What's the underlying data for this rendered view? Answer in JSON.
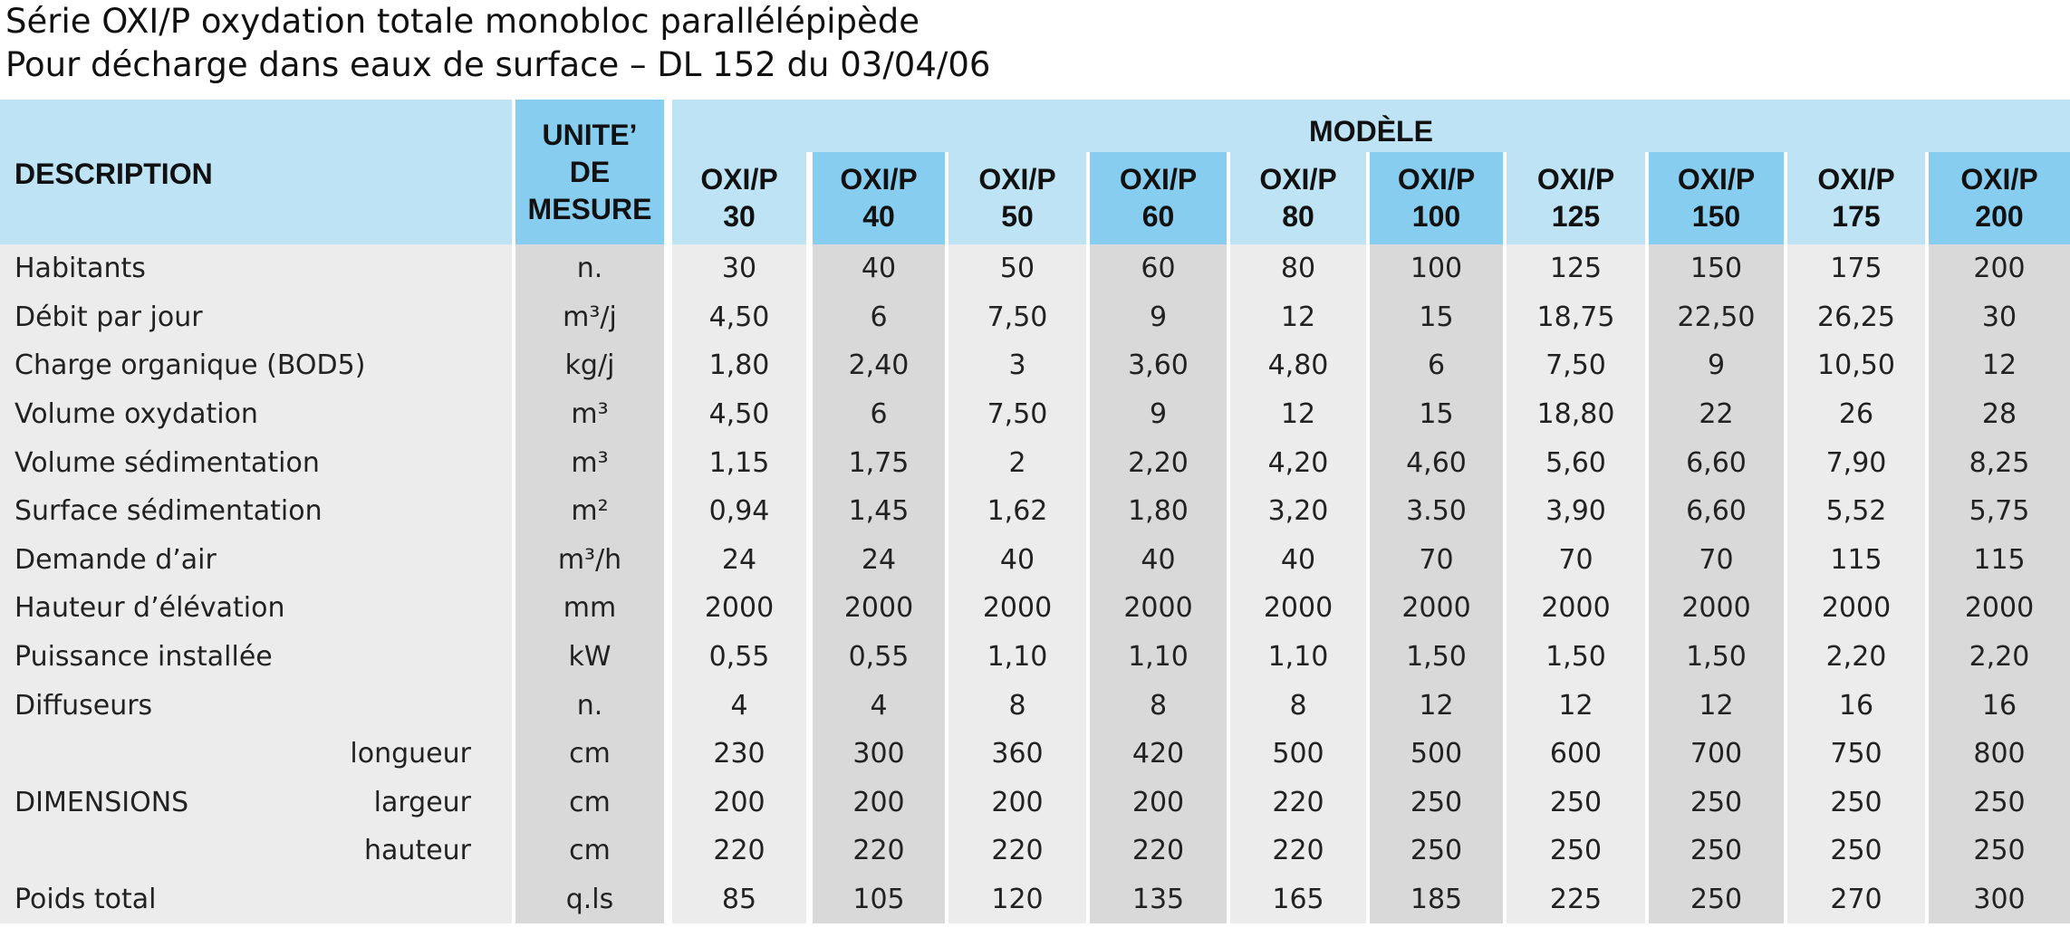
{
  "title_line1": "Série OXI/P oxydation totale monobloc parallélépipède",
  "title_line2": "Pour décharge dans eaux de surface – DL 152 du 03/04/06",
  "header": {
    "description": "DESCRIPTION",
    "unit_lines": [
      "UNITE’",
      "DE",
      "MESURE"
    ],
    "model_group": "MODÈLE",
    "models": [
      {
        "name": "OXI/P",
        "size": "30"
      },
      {
        "name": "OXI/P",
        "size": "40"
      },
      {
        "name": "OXI/P",
        "size": "50"
      },
      {
        "name": "OXI/P",
        "size": "60"
      },
      {
        "name": "OXI/P",
        "size": "80"
      },
      {
        "name": "OXI/P",
        "size": "100"
      },
      {
        "name": "OXI/P",
        "size": "125"
      },
      {
        "name": "OXI/P",
        "size": "150"
      },
      {
        "name": "OXI/P",
        "size": "175"
      },
      {
        "name": "OXI/P",
        "size": "200"
      }
    ]
  },
  "rows": [
    {
      "label": "Habitants",
      "sub": "",
      "unit": "n.",
      "values": [
        "30",
        "40",
        "50",
        "60",
        "80",
        "100",
        "125",
        "150",
        "175",
        "200"
      ]
    },
    {
      "label": "Débit par jour",
      "sub": "",
      "unit": "m³/j",
      "values": [
        "4,50",
        "6",
        "7,50",
        "9",
        "12",
        "15",
        "18,75",
        "22,50",
        "26,25",
        "30"
      ]
    },
    {
      "label": "Charge organique (BOD5)",
      "sub": "",
      "unit": "kg/j",
      "values": [
        "1,80",
        "2,40",
        "3",
        "3,60",
        "4,80",
        "6",
        "7,50",
        "9",
        "10,50",
        "12"
      ]
    },
    {
      "label": "Volume oxydation",
      "sub": "",
      "unit": "m³",
      "values": [
        "4,50",
        "6",
        "7,50",
        "9",
        "12",
        "15",
        "18,80",
        "22",
        "26",
        "28"
      ]
    },
    {
      "label": "Volume sédimentation",
      "sub": "",
      "unit": "m³",
      "values": [
        "1,15",
        "1,75",
        "2",
        "2,20",
        "4,20",
        "4,60",
        "5,60",
        "6,60",
        "7,90",
        "8,25"
      ]
    },
    {
      "label": "Surface sédimentation",
      "sub": "",
      "unit": "m²",
      "values": [
        "0,94",
        "1,45",
        "1,62",
        "1,80",
        "3,20",
        "3.50",
        "3,90",
        "6,60",
        "5,52",
        "5,75"
      ]
    },
    {
      "label": "Demande d’air",
      "sub": "",
      "unit": "m³/h",
      "values": [
        "24",
        "24",
        "40",
        "40",
        "40",
        "70",
        "70",
        "70",
        "115",
        "115"
      ]
    },
    {
      "label": "Hauteur d’élévation",
      "sub": "",
      "unit": "mm",
      "values": [
        "2000",
        "2000",
        "2000",
        "2000",
        "2000",
        "2000",
        "2000",
        "2000",
        "2000",
        "2000"
      ]
    },
    {
      "label": "Puissance installée",
      "sub": "",
      "unit": "kW",
      "values": [
        "0,55",
        "0,55",
        "1,10",
        "1,10",
        "1,10",
        "1,50",
        "1,50",
        "1,50",
        "2,20",
        "2,20"
      ]
    },
    {
      "label": "Diffuseurs",
      "sub": "",
      "unit": "n.",
      "values": [
        "4",
        "4",
        "8",
        "8",
        "8",
        "12",
        "12",
        "12",
        "16",
        "16"
      ]
    },
    {
      "label": "",
      "sub": "longueur",
      "unit": "cm",
      "values": [
        "230",
        "300",
        "360",
        "420",
        "500",
        "500",
        "600",
        "700",
        "750",
        "800"
      ]
    },
    {
      "label": "DIMENSIONS",
      "sub": "largeur",
      "unit": "cm",
      "values": [
        "200",
        "200",
        "200",
        "200",
        "220",
        "250",
        "250",
        "250",
        "250",
        "250"
      ]
    },
    {
      "label": "",
      "sub": "hauteur",
      "unit": "cm",
      "values": [
        "220",
        "220",
        "220",
        "220",
        "220",
        "250",
        "250",
        "250",
        "250",
        "250"
      ]
    },
    {
      "label": "Poids total",
      "sub": "",
      "unit": "q.ls",
      "values": [
        "85",
        "105",
        "120",
        "135",
        "165",
        "185",
        "225",
        "250",
        "270",
        "300"
      ]
    }
  ],
  "colors": {
    "header_light": "#bde3f4",
    "header_dark": "#86cdef",
    "body_light": "#ececec",
    "body_dark": "#d9d9d9",
    "separator": "#ffffff"
  }
}
